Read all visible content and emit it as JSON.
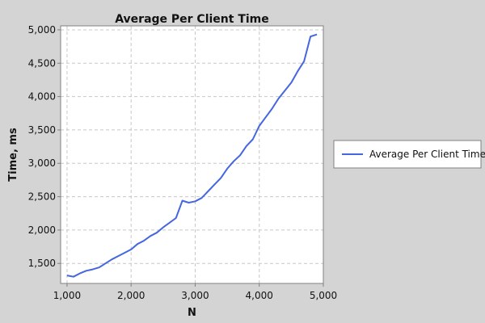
{
  "chart_data": {
    "type": "line",
    "title": "Average Per Client Time",
    "xlabel": "N",
    "ylabel": "Time, ms",
    "xlim": [
      900,
      5000
    ],
    "ylim": [
      1200,
      5060
    ],
    "x_ticks": [
      1000,
      2000,
      3000,
      4000,
      5000
    ],
    "x_tick_labels": [
      "1,000",
      "2,000",
      "3,000",
      "4,000",
      "5,000"
    ],
    "y_ticks": [
      1500,
      2000,
      2500,
      3000,
      3500,
      4000,
      4500,
      5000
    ],
    "y_tick_labels": [
      "1,500",
      "2,000",
      "2,500",
      "3,000",
      "3,500",
      "4,000",
      "4,500",
      "5,000"
    ],
    "grid": true,
    "legend_position": "right",
    "series": [
      {
        "name": "Average Per Client Time",
        "color": "#4466e0",
        "x": [
          1000,
          1100,
          1200,
          1300,
          1400,
          1500,
          1600,
          1700,
          1800,
          1900,
          2000,
          2100,
          2200,
          2300,
          2400,
          2500,
          2600,
          2700,
          2800,
          2900,
          3000,
          3100,
          3200,
          3300,
          3400,
          3500,
          3600,
          3700,
          3800,
          3900,
          4000,
          4100,
          4200,
          4300,
          4400,
          4500,
          4600,
          4700,
          4800,
          4900
        ],
        "values": [
          1320,
          1300,
          1350,
          1390,
          1410,
          1440,
          1500,
          1560,
          1610,
          1660,
          1710,
          1790,
          1840,
          1910,
          1960,
          2040,
          2110,
          2180,
          2440,
          2410,
          2430,
          2480,
          2580,
          2680,
          2780,
          2920,
          3030,
          3120,
          3260,
          3360,
          3560,
          3690,
          3820,
          3970,
          4090,
          4210,
          4380,
          4530,
          4900,
          4930
        ]
      }
    ]
  }
}
